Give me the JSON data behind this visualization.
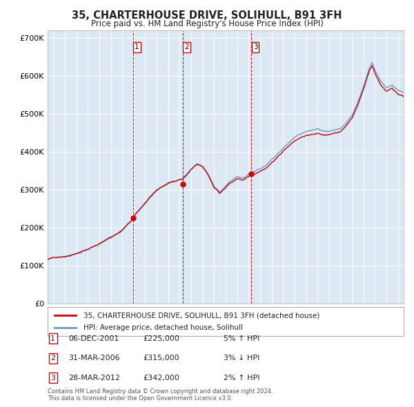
{
  "title": "35, CHARTERHOUSE DRIVE, SOLIHULL, B91 3FH",
  "subtitle": "Price paid vs. HM Land Registry's House Price Index (HPI)",
  "plot_bg_color": "#dce9f5",
  "grid_color": "#ffffff",
  "red_line_color": "#cc0000",
  "blue_line_color": "#6699cc",
  "sale_dot_color": "#cc0000",
  "vline_color": "#cc0000",
  "sales": [
    {
      "index": 1,
      "date_str": "06-DEC-2001",
      "date_num": 2001.92,
      "price": 225000,
      "pct": "5%",
      "dir": "↑"
    },
    {
      "index": 2,
      "date_str": "31-MAR-2006",
      "date_num": 2006.25,
      "price": 315000,
      "pct": "3%",
      "dir": "↓"
    },
    {
      "index": 3,
      "date_str": "28-MAR-2012",
      "date_num": 2012.24,
      "price": 342000,
      "pct": "2%",
      "dir": "↑"
    }
  ],
  "ylim": [
    0,
    720000
  ],
  "yticks": [
    0,
    100000,
    200000,
    300000,
    400000,
    500000,
    600000,
    700000
  ],
  "ytick_labels": [
    "£0",
    "£100K",
    "£200K",
    "£300K",
    "£400K",
    "£500K",
    "£600K",
    "£700K"
  ],
  "xlim_start": 1994.5,
  "xlim_end": 2025.5,
  "xticks": [
    1995,
    1996,
    1997,
    1998,
    1999,
    2000,
    2001,
    2002,
    2003,
    2004,
    2005,
    2006,
    2007,
    2008,
    2009,
    2010,
    2011,
    2012,
    2013,
    2014,
    2015,
    2016,
    2017,
    2018,
    2019,
    2020,
    2021,
    2022,
    2023,
    2024,
    2025
  ],
  "legend_label_red": "35, CHARTERHOUSE DRIVE, SOLIHULL, B91 3FH (detached house)",
  "legend_label_blue": "HPI: Average price, detached house, Solihull",
  "footer_line1": "Contains HM Land Registry data © Crown copyright and database right 2024.",
  "footer_line2": "This data is licensed under the Open Government Licence v3.0."
}
